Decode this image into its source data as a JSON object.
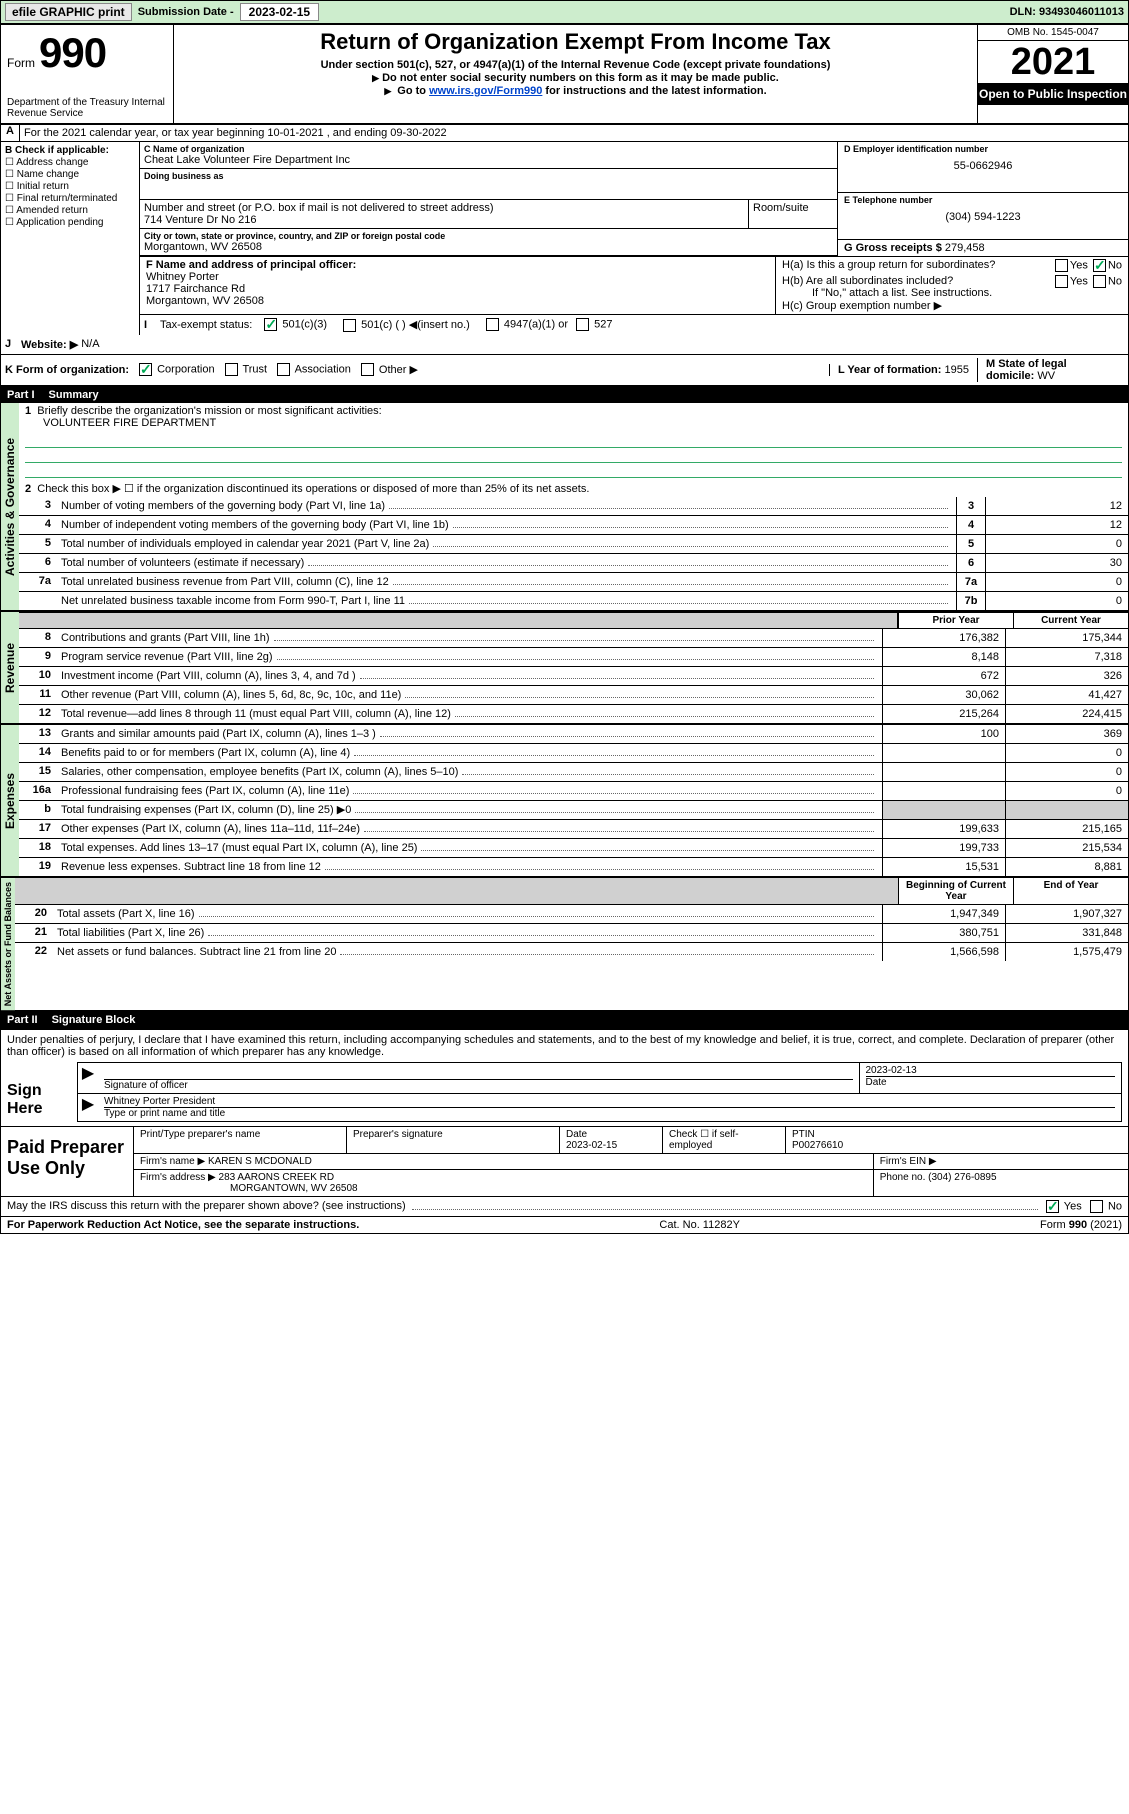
{
  "topbar": {
    "efile": "efile GRAPHIC print",
    "sub_lbl": "Submission Date -",
    "sub_date": "2023-02-15",
    "dln_lbl": "DLN:",
    "dln": "93493046011013"
  },
  "header": {
    "form_word": "Form",
    "form_num": "990",
    "dept": "Department of the Treasury Internal Revenue Service",
    "title": "Return of Organization Exempt From Income Tax",
    "sub1": "Under section 501(c), 527, or 4947(a)(1) of the Internal Revenue Code (except private foundations)",
    "sub2": "Do not enter social security numbers on this form as it may be made public.",
    "sub3a": "Go to ",
    "sub3_link": "www.irs.gov/Form990",
    "sub3b": " for instructions and the latest information.",
    "omb": "OMB No. 1545-0047",
    "year": "2021",
    "open": "Open to Public Inspection"
  },
  "line_a": "For the 2021 calendar year, or tax year beginning 10-01-2021   , and ending 09-30-2022",
  "col_b": {
    "hdr": "B Check if applicable:",
    "i1": "Address change",
    "i2": "Name change",
    "i3": "Initial return",
    "i4": "Final return/terminated",
    "i5": "Amended return",
    "i6": "Application pending"
  },
  "col_c": {
    "name_lbl": "C Name of organization",
    "name": "Cheat Lake Volunteer Fire Department Inc",
    "dba_lbl": "Doing business as",
    "addr_lbl": "Number and street (or P.O. box if mail is not delivered to street address)",
    "room_lbl": "Room/suite",
    "addr": "714 Venture Dr No 216",
    "city_lbl": "City or town, state or province, country, and ZIP or foreign postal code",
    "city": "Morgantown, WV  26508"
  },
  "col_d": {
    "ein_lbl": "D Employer identification number",
    "ein": "55-0662946",
    "tel_lbl": "E Telephone number",
    "tel": "(304) 594-1223",
    "gross_lbl": "G Gross receipts $",
    "gross": "279,458"
  },
  "row_f": {
    "lbl": "F  Name and address of principal officer:",
    "name": "Whitney Porter",
    "addr1": "1717 Fairchance Rd",
    "addr2": "Morgantown, WV  26508"
  },
  "row_h": {
    "ha": "H(a)  Is this a group return for subordinates?",
    "hb": "H(b)  Are all subordinates included?",
    "hb2": "If \"No,\" attach a list. See instructions.",
    "hc": "H(c)  Group exemption number ▶",
    "yes": "Yes",
    "no": "No"
  },
  "row_i": {
    "lbl": "Tax-exempt status:",
    "c3": "501(c)(3)",
    "c": "501(c) (   ) ◀(insert no.)",
    "a1": "4947(a)(1) or",
    "s527": "527"
  },
  "row_j": {
    "lbl": "Website: ▶",
    "val": "N/A"
  },
  "row_k": {
    "lbl": "K Form of organization:",
    "corp": "Corporation",
    "trust": "Trust",
    "assoc": "Association",
    "other": "Other ▶",
    "l_lbl": "L Year of formation:",
    "l_val": "1955",
    "m_lbl": "M State of legal domicile:",
    "m_val": "WV"
  },
  "part1": {
    "num": "Part I",
    "title": "Summary",
    "l1": "Briefly describe the organization's mission or most significant activities:",
    "l1_val": "VOLUNTEER FIRE DEPARTMENT",
    "l2": "Check this box ▶ ☐  if the organization discontinued its operations or disposed of more than 25% of its net assets.",
    "vert_gov": "Activities & Governance",
    "vert_rev": "Revenue",
    "vert_exp": "Expenses",
    "vert_net": "Net Assets or Fund Balances",
    "prior": "Prior Year",
    "current": "Current Year",
    "boy": "Beginning of Current Year",
    "eoy": "End of Year",
    "lines_gov": [
      {
        "n": "3",
        "t": "Number of voting members of the governing body (Part VI, line 1a)",
        "b": "3",
        "v": "12"
      },
      {
        "n": "4",
        "t": "Number of independent voting members of the governing body (Part VI, line 1b)",
        "b": "4",
        "v": "12"
      },
      {
        "n": "5",
        "t": "Total number of individuals employed in calendar year 2021 (Part V, line 2a)",
        "b": "5",
        "v": "0"
      },
      {
        "n": "6",
        "t": "Total number of volunteers (estimate if necessary)",
        "b": "6",
        "v": "30"
      },
      {
        "n": "7a",
        "t": "Total unrelated business revenue from Part VIII, column (C), line 12",
        "b": "7a",
        "v": "0"
      },
      {
        "n": "",
        "t": "Net unrelated business taxable income from Form 990-T, Part I, line 11",
        "b": "7b",
        "v": "0"
      }
    ],
    "lines_rev": [
      {
        "n": "8",
        "t": "Contributions and grants (Part VIII, line 1h)",
        "p": "176,382",
        "c": "175,344"
      },
      {
        "n": "9",
        "t": "Program service revenue (Part VIII, line 2g)",
        "p": "8,148",
        "c": "7,318"
      },
      {
        "n": "10",
        "t": "Investment income (Part VIII, column (A), lines 3, 4, and 7d )",
        "p": "672",
        "c": "326"
      },
      {
        "n": "11",
        "t": "Other revenue (Part VIII, column (A), lines 5, 6d, 8c, 9c, 10c, and 11e)",
        "p": "30,062",
        "c": "41,427"
      },
      {
        "n": "12",
        "t": "Total revenue—add lines 8 through 11 (must equal Part VIII, column (A), line 12)",
        "p": "215,264",
        "c": "224,415"
      }
    ],
    "lines_exp": [
      {
        "n": "13",
        "t": "Grants and similar amounts paid (Part IX, column (A), lines 1–3 )",
        "p": "100",
        "c": "369"
      },
      {
        "n": "14",
        "t": "Benefits paid to or for members (Part IX, column (A), line 4)",
        "p": "",
        "c": "0"
      },
      {
        "n": "15",
        "t": "Salaries, other compensation, employee benefits (Part IX, column (A), lines 5–10)",
        "p": "",
        "c": "0"
      },
      {
        "n": "16a",
        "t": "Professional fundraising fees (Part IX, column (A), line 11e)",
        "p": "",
        "c": "0"
      },
      {
        "n": "b",
        "t": "Total fundraising expenses (Part IX, column (D), line 25) ▶0",
        "p": "shade",
        "c": "shade"
      },
      {
        "n": "17",
        "t": "Other expenses (Part IX, column (A), lines 11a–11d, 11f–24e)",
        "p": "199,633",
        "c": "215,165"
      },
      {
        "n": "18",
        "t": "Total expenses. Add lines 13–17 (must equal Part IX, column (A), line 25)",
        "p": "199,733",
        "c": "215,534"
      },
      {
        "n": "19",
        "t": "Revenue less expenses. Subtract line 18 from line 12",
        "p": "15,531",
        "c": "8,881"
      }
    ],
    "lines_net": [
      {
        "n": "20",
        "t": "Total assets (Part X, line 16)",
        "p": "1,947,349",
        "c": "1,907,327"
      },
      {
        "n": "21",
        "t": "Total liabilities (Part X, line 26)",
        "p": "380,751",
        "c": "331,848"
      },
      {
        "n": "22",
        "t": "Net assets or fund balances. Subtract line 21 from line 20",
        "p": "1,566,598",
        "c": "1,575,479"
      }
    ]
  },
  "part2": {
    "num": "Part II",
    "title": "Signature Block",
    "decl": "Under penalties of perjury, I declare that I have examined this return, including accompanying schedules and statements, and to the best of my knowledge and belief, it is true, correct, and complete. Declaration of preparer (other than officer) is based on all information of which preparer has any knowledge.",
    "sign_lbl": "Sign Here",
    "sig_officer": "Signature of officer",
    "date": "Date",
    "sig_date": "2023-02-13",
    "name_title": "Whitney Porter  President",
    "name_title_lbl": "Type or print name and title",
    "prep_lbl": "Paid Preparer Use Only",
    "pt_name": "Print/Type preparer's name",
    "pt_sig": "Preparer's signature",
    "pt_date_lbl": "Date",
    "pt_date": "2023-02-15",
    "pt_self": "Check ☐ if self-employed",
    "ptin_lbl": "PTIN",
    "ptin": "P00276610",
    "firm_name_lbl": "Firm's name    ▶",
    "firm_name": "KAREN S MCDONALD",
    "firm_ein": "Firm's EIN ▶",
    "firm_addr_lbl": "Firm's address ▶",
    "firm_addr1": "283 AARONS CREEK RD",
    "firm_addr2": "MORGANTOWN, WV  26508",
    "phone_lbl": "Phone no.",
    "phone": "(304) 276-0895",
    "may": "May the IRS discuss this return with the preparer shown above? (see instructions)"
  },
  "footer": {
    "left": "For Paperwork Reduction Act Notice, see the separate instructions.",
    "mid": "Cat. No. 11282Y",
    "right": "Form 990 (2021)"
  }
}
